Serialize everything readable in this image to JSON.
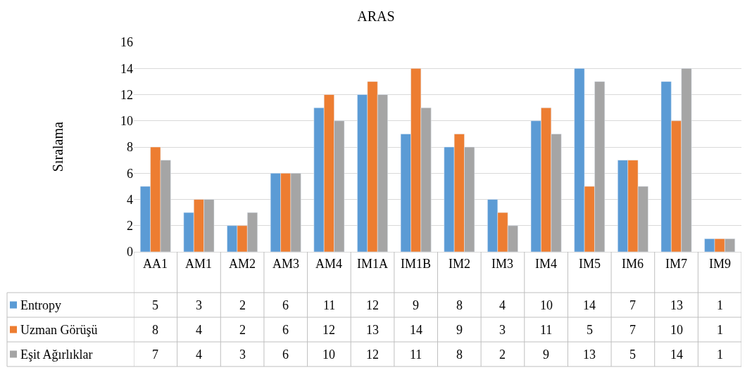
{
  "chart_data": {
    "type": "bar",
    "title": "ARAS",
    "ylabel": "Sıralama",
    "categories": [
      "AA1",
      "AM1",
      "AM2",
      "AM3",
      "AM4",
      "IM1A",
      "IM1B",
      "IM2",
      "IM3",
      "IM4",
      "IM5",
      "IM6",
      "IM7",
      "IM9"
    ],
    "series": [
      {
        "name": "Entropy",
        "color": "#5b9bd5",
        "values": [
          5,
          3,
          2,
          6,
          11,
          12,
          9,
          8,
          4,
          10,
          14,
          7,
          13,
          1
        ]
      },
      {
        "name": "Uzman Görüşü",
        "color": "#ed7d31",
        "values": [
          8,
          4,
          2,
          6,
          12,
          13,
          14,
          9,
          3,
          11,
          5,
          7,
          10,
          1
        ]
      },
      {
        "name": "Eşit Ağırlıklar",
        "color": "#a5a5a5",
        "values": [
          7,
          4,
          3,
          6,
          10,
          12,
          11,
          8,
          2,
          9,
          13,
          5,
          14,
          1
        ]
      }
    ],
    "ylim": [
      0,
      16
    ],
    "yticks": [
      0,
      2,
      4,
      6,
      8,
      10,
      12,
      14,
      16
    ],
    "grid": "y",
    "data_labels": true,
    "legend": "bottom"
  }
}
